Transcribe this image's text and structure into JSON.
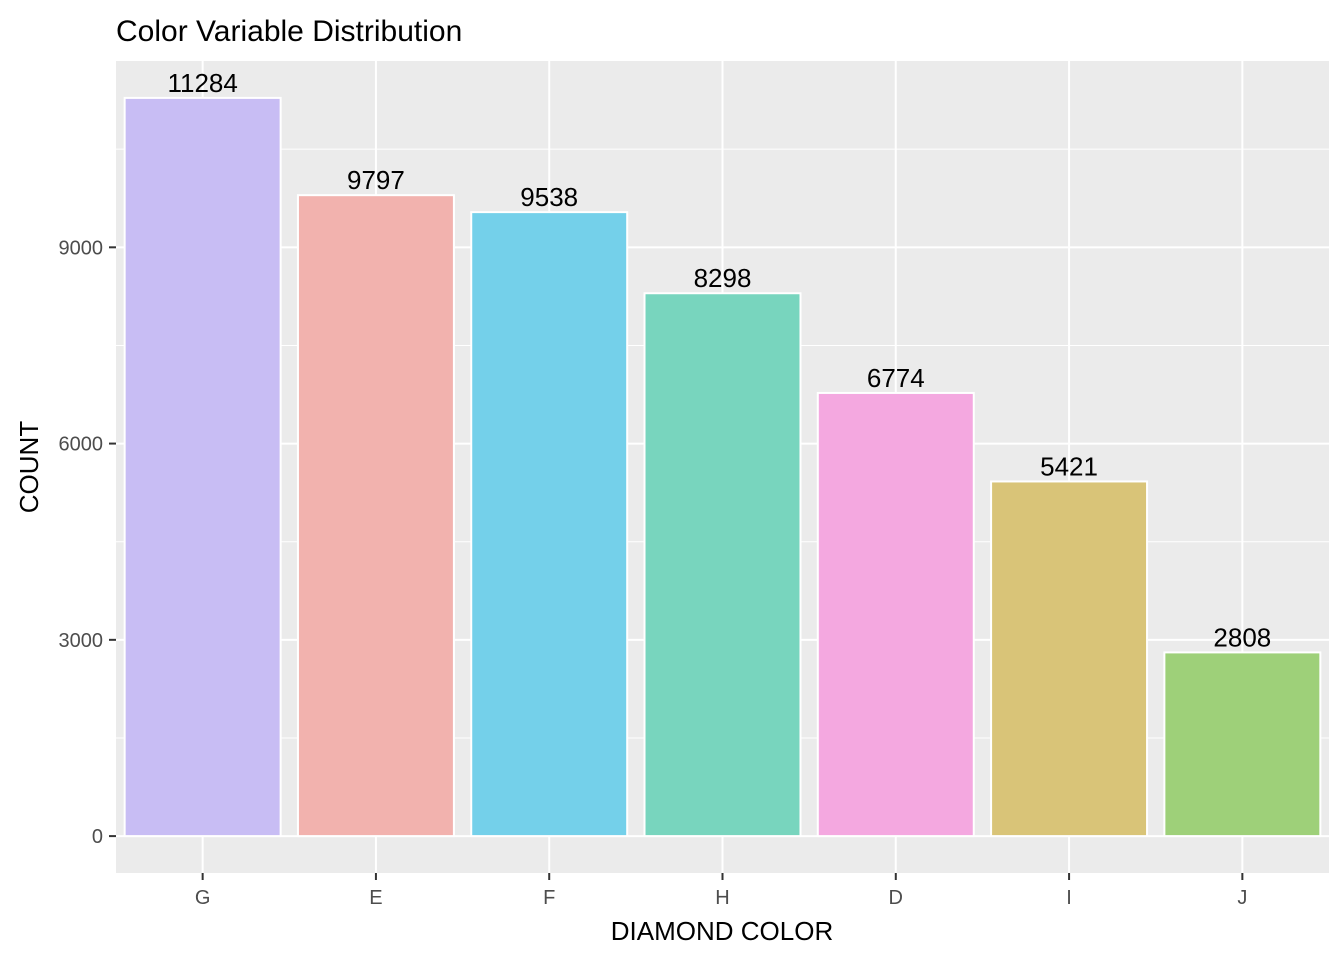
{
  "chart_data": {
    "type": "bar",
    "title": "Color Variable Distribution",
    "xlabel": "DIAMOND COLOR",
    "ylabel": "COUNT",
    "categories": [
      "G",
      "E",
      "F",
      "H",
      "D",
      "I",
      "J"
    ],
    "values": [
      11284,
      9797,
      9538,
      8298,
      6774,
      5421,
      2808
    ],
    "value_labels": [
      "11284",
      "9797",
      "9538",
      "8298",
      "6774",
      "5421",
      "2808"
    ],
    "y_ticks": [
      0,
      3000,
      6000,
      9000
    ],
    "y_tick_labels": [
      "0",
      "3000",
      "6000",
      "9000"
    ],
    "ylim": [
      -564,
      11848
    ],
    "grid": true,
    "legend": "none",
    "colors": [
      "#C8BDF4",
      "#F2B2AE",
      "#74D0EA",
      "#78D5BE",
      "#F4A8E0",
      "#D9C478",
      "#9ED079"
    ],
    "panel_background": "#EBEBEB",
    "grid_color": "#FFFFFF"
  }
}
